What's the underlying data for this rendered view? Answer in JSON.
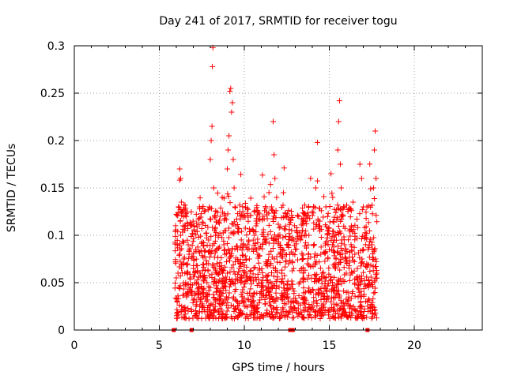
{
  "chart_data": {
    "type": "scatter",
    "title": "Day 241 of 2017, SRMTID for receiver togu",
    "xlabel": "GPS time / hours",
    "ylabel": "SRMTID / TECUs",
    "xlim": [
      0,
      24
    ],
    "ylim": [
      0,
      0.3
    ],
    "x_ticks": [
      0,
      5,
      10,
      15,
      20
    ],
    "x_tick_labels": [
      "0",
      "5",
      "10",
      "15",
      "20"
    ],
    "y_ticks": [
      0,
      0.05,
      0.1,
      0.15,
      0.2,
      0.25,
      0.3
    ],
    "y_tick_labels": [
      "0",
      "0.05",
      "0.1",
      "0.15",
      "0.2",
      "0.25",
      "0.3"
    ],
    "grid": true,
    "marker_color": "#ff0000",
    "series": [
      {
        "name": "SRMTID",
        "marker": "plus",
        "x_range": [
          5.9,
          17.8
        ],
        "points": [
          [
            5.95,
            0.072
          ],
          [
            6.0,
            0.055
          ],
          [
            6.05,
            0.09
          ],
          [
            6.1,
            0.06
          ],
          [
            6.15,
            0.045
          ],
          [
            6.2,
            0.08
          ],
          [
            6.25,
            0.1
          ],
          [
            6.3,
            0.065
          ],
          [
            6.2,
            0.17
          ],
          [
            6.25,
            0.16
          ],
          [
            6.3,
            0.135
          ],
          [
            6.35,
            0.125
          ],
          [
            6.4,
            0.11
          ],
          [
            6.45,
            0.075
          ],
          [
            6.5,
            0.06
          ],
          [
            6.55,
            0.05
          ],
          [
            6.6,
            0.035
          ],
          [
            6.65,
            0.07
          ],
          [
            6.7,
            0.09
          ],
          [
            6.75,
            0.08
          ],
          [
            6.8,
            0.055
          ],
          [
            6.9,
            0.04
          ],
          [
            7.0,
            0.065
          ],
          [
            7.05,
            0.11
          ],
          [
            7.1,
            0.05
          ],
          [
            7.2,
            0.03
          ],
          [
            7.3,
            0.045
          ],
          [
            7.4,
            0.06
          ],
          [
            7.5,
            0.025
          ],
          [
            7.6,
            0.035
          ],
          [
            7.7,
            0.055
          ],
          [
            7.8,
            0.07
          ],
          [
            7.9,
            0.095
          ],
          [
            7.95,
            0.13
          ],
          [
            8.0,
            0.18
          ],
          [
            8.05,
            0.2
          ],
          [
            8.1,
            0.215
          ],
          [
            8.12,
            0.278
          ],
          [
            8.15,
            0.298
          ],
          [
            8.2,
            0.15
          ],
          [
            8.25,
            0.12
          ],
          [
            8.3,
            0.1
          ],
          [
            8.35,
            0.085
          ],
          [
            8.4,
            0.07
          ],
          [
            8.5,
            0.06
          ],
          [
            8.6,
            0.12
          ],
          [
            8.7,
            0.14
          ],
          [
            8.8,
            0.09
          ],
          [
            8.9,
            0.05
          ],
          [
            9.0,
            0.17
          ],
          [
            9.05,
            0.19
          ],
          [
            9.1,
            0.205
          ],
          [
            9.15,
            0.252
          ],
          [
            9.2,
            0.255
          ],
          [
            9.25,
            0.23
          ],
          [
            9.3,
            0.24
          ],
          [
            9.35,
            0.18
          ],
          [
            9.4,
            0.15
          ],
          [
            9.45,
            0.13
          ],
          [
            9.5,
            0.11
          ],
          [
            9.6,
            0.085
          ],
          [
            9.7,
            0.065
          ],
          [
            9.8,
            0.05
          ],
          [
            9.9,
            0.04
          ],
          [
            10.0,
            0.03
          ],
          [
            10.1,
            0.06
          ],
          [
            10.2,
            0.09
          ],
          [
            10.3,
            0.075
          ],
          [
            10.4,
            0.055
          ],
          [
            10.5,
            0.035
          ],
          [
            10.6,
            0.1
          ],
          [
            10.7,
            0.115
          ],
          [
            10.8,
            0.08
          ],
          [
            10.9,
            0.065
          ],
          [
            11.0,
            0.045
          ],
          [
            11.1,
            0.12
          ],
          [
            11.2,
            0.095
          ],
          [
            11.3,
            0.07
          ],
          [
            11.4,
            0.05
          ],
          [
            11.5,
            0.04
          ],
          [
            11.6,
            0.13
          ],
          [
            11.7,
            0.22
          ],
          [
            11.75,
            0.185
          ],
          [
            11.8,
            0.16
          ],
          [
            11.9,
            0.14
          ],
          [
            12.0,
            0.1
          ],
          [
            12.1,
            0.08
          ],
          [
            12.2,
            0.06
          ],
          [
            12.3,
            0.145
          ],
          [
            12.4,
            0.12
          ],
          [
            12.5,
            0.09
          ],
          [
            12.6,
            0.07
          ],
          [
            12.7,
            0.045
          ],
          [
            12.8,
            0.03
          ],
          [
            12.9,
            0.065
          ],
          [
            13.0,
            0.085
          ],
          [
            13.1,
            0.105
          ],
          [
            13.2,
            0.12
          ],
          [
            13.3,
            0.095
          ],
          [
            13.4,
            0.075
          ],
          [
            13.5,
            0.055
          ],
          [
            13.6,
            0.04
          ],
          [
            13.7,
            0.07
          ],
          [
            13.8,
            0.1
          ],
          [
            13.9,
            0.16
          ],
          [
            14.0,
            0.125
          ],
          [
            14.1,
            0.09
          ],
          [
            14.2,
            0.15
          ],
          [
            14.3,
            0.198
          ],
          [
            14.4,
            0.11
          ],
          [
            14.5,
            0.08
          ],
          [
            14.6,
            0.06
          ],
          [
            14.7,
            0.045
          ],
          [
            14.8,
            0.13
          ],
          [
            14.9,
            0.105
          ],
          [
            15.0,
            0.085
          ],
          [
            15.1,
            0.165
          ],
          [
            15.2,
            0.14
          ],
          [
            15.3,
            0.1
          ],
          [
            15.4,
            0.075
          ],
          [
            15.5,
            0.19
          ],
          [
            15.55,
            0.22
          ],
          [
            15.6,
            0.242
          ],
          [
            15.65,
            0.175
          ],
          [
            15.7,
            0.15
          ],
          [
            15.8,
            0.12
          ],
          [
            15.9,
            0.09
          ],
          [
            16.0,
            0.06
          ],
          [
            16.1,
            0.04
          ],
          [
            16.2,
            0.025
          ],
          [
            16.3,
            0.11
          ],
          [
            16.4,
            0.135
          ],
          [
            16.5,
            0.08
          ],
          [
            16.6,
            0.055
          ],
          [
            16.7,
            0.035
          ],
          [
            16.8,
            0.175
          ],
          [
            16.9,
            0.16
          ],
          [
            17.0,
            0.13
          ],
          [
            17.1,
            0.1
          ],
          [
            17.2,
            0.07
          ],
          [
            17.3,
            0.045
          ],
          [
            17.4,
            0.02
          ],
          [
            17.5,
            0.09
          ],
          [
            17.6,
            0.15
          ],
          [
            17.65,
            0.19
          ],
          [
            17.7,
            0.21
          ],
          [
            17.75,
            0.16
          ],
          [
            17.8,
            0.06
          ]
        ]
      }
    ],
    "baseline_markers_x": [
      5.85,
      6.9,
      12.7,
      12.85,
      17.25
    ]
  }
}
